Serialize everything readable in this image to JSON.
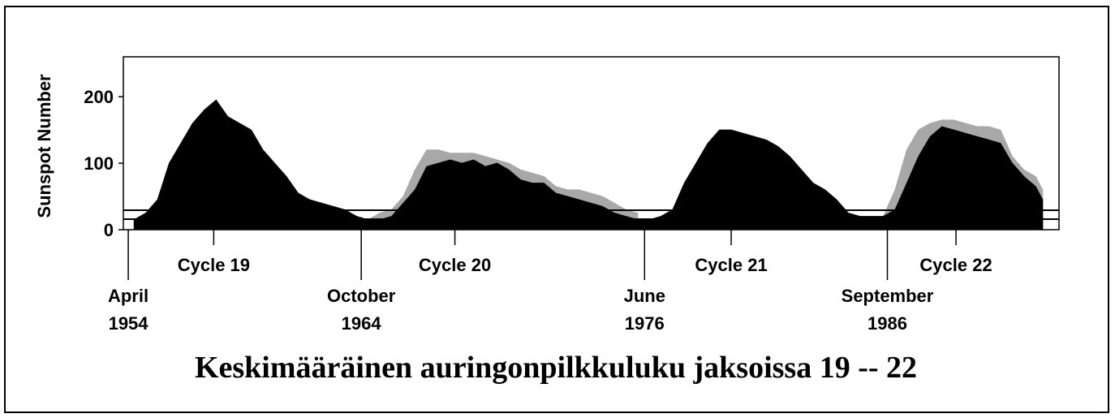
{
  "chart_data": {
    "type": "area",
    "title": "Keskimääräinen auringonpilkkuluku jaksoissa 19 -- 22",
    "y_label": "Sunspot Number",
    "ylim": [
      0,
      260
    ],
    "yticks": [
      0,
      100,
      200
    ],
    "xlim": [
      1954.04,
      1994.0
    ],
    "x": [
      1954.5,
      1955.0,
      1955.5,
      1956.0,
      1956.5,
      1957.0,
      1957.5,
      1958.0,
      1958.5,
      1959.0,
      1959.5,
      1960.0,
      1960.5,
      1961.0,
      1961.5,
      1962.0,
      1962.5,
      1963.0,
      1963.5,
      1964.0,
      1964.5,
      1965.0,
      1965.5,
      1966.0,
      1966.5,
      1967.0,
      1967.5,
      1968.0,
      1968.5,
      1969.0,
      1969.5,
      1970.0,
      1970.5,
      1971.0,
      1971.5,
      1972.0,
      1972.5,
      1973.0,
      1973.5,
      1974.0,
      1974.5,
      1975.0,
      1975.5,
      1976.0,
      1976.5,
      1977.0,
      1977.5,
      1978.0,
      1978.5,
      1979.0,
      1979.5,
      1980.0,
      1980.5,
      1981.0,
      1981.5,
      1982.0,
      1982.5,
      1983.0,
      1983.5,
      1984.0,
      1984.5,
      1985.0,
      1985.5,
      1986.0,
      1986.5,
      1987.0,
      1987.5,
      1988.0,
      1988.5,
      1989.0,
      1989.5,
      1990.0,
      1990.5,
      1991.0,
      1991.5,
      1992.0,
      1992.5,
      1993.0,
      1993.3
    ],
    "series": [
      {
        "color": "#a8a8a8",
        "values": [
          null,
          null,
          null,
          null,
          null,
          null,
          null,
          null,
          null,
          null,
          null,
          null,
          null,
          null,
          null,
          null,
          null,
          null,
          null,
          null,
          15,
          25,
          30,
          50,
          90,
          120,
          120,
          115,
          115,
          115,
          110,
          105,
          100,
          90,
          85,
          80,
          65,
          60,
          60,
          55,
          50,
          40,
          30,
          25,
          null,
          null,
          null,
          null,
          null,
          null,
          null,
          null,
          null,
          null,
          null,
          null,
          null,
          null,
          null,
          null,
          null,
          null,
          null,
          null,
          20,
          60,
          120,
          150,
          160,
          165,
          165,
          160,
          155,
          155,
          150,
          110,
          90,
          80,
          60
        ]
      },
      {
        "color": "#000000",
        "values": [
          15,
          25,
          45,
          100,
          130,
          160,
          180,
          195,
          170,
          160,
          150,
          120,
          100,
          80,
          55,
          45,
          40,
          35,
          30,
          20,
          15,
          15,
          20,
          40,
          60,
          95,
          100,
          105,
          100,
          105,
          95,
          100,
          90,
          75,
          70,
          70,
          55,
          50,
          45,
          40,
          35,
          25,
          20,
          15,
          15,
          20,
          30,
          70,
          100,
          130,
          150,
          150,
          145,
          140,
          135,
          125,
          110,
          90,
          70,
          60,
          45,
          25,
          20,
          20,
          20,
          30,
          70,
          110,
          140,
          155,
          150,
          145,
          140,
          135,
          130,
          100,
          80,
          65,
          45
        ]
      }
    ],
    "events": [
      {
        "x": 1954.25,
        "label": [
          "April",
          "1954"
        ]
      },
      {
        "x": 1964.2,
        "label": [
          "October",
          "1964"
        ]
      },
      {
        "x": 1976.3,
        "label": [
          "June",
          "1976"
        ]
      },
      {
        "x": 1986.67,
        "label": [
          "September",
          "1986"
        ]
      }
    ],
    "cycles": [
      {
        "x": 1957.9,
        "label": "Cycle 19"
      },
      {
        "x": 1968.2,
        "label": "Cycle 20"
      },
      {
        "x": 1980.0,
        "label": "Cycle 21"
      },
      {
        "x": 1989.6,
        "label": "Cycle 22"
      }
    ]
  }
}
